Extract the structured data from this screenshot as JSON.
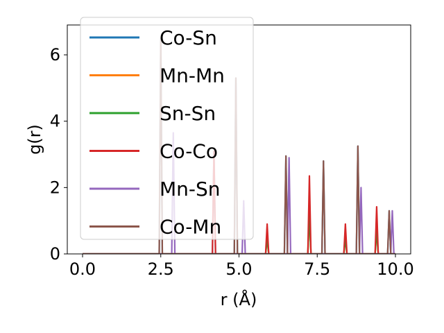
{
  "chart_data": {
    "type": "line",
    "title": "",
    "xlabel": "r (Å)",
    "ylabel": "g(r)",
    "xlim": [
      -0.5,
      10.25
    ],
    "ylim": [
      0,
      6.9
    ],
    "xticks": [
      0.0,
      2.5,
      5.0,
      7.5,
      10.0
    ],
    "xtick_labels": [
      "0.0",
      "2.5",
      "5.0",
      "7.5",
      "10.0"
    ],
    "yticks": [
      0,
      2,
      4,
      6
    ],
    "ytick_labels": [
      "0",
      "2",
      "4",
      "6"
    ],
    "grid": false,
    "legend_position": "top-left",
    "peak_width": 0.05,
    "series": [
      {
        "name": "Co-Sn",
        "color": "#1f77b4",
        "peaks": [
          [
            2.5,
            6.5
          ],
          [
            4.2,
            3.1
          ],
          [
            4.9,
            5.3
          ],
          [
            6.5,
            2.95
          ],
          [
            7.7,
            2.8
          ],
          [
            8.8,
            3.25
          ],
          [
            9.8,
            1.3
          ]
        ]
      },
      {
        "name": "Mn-Mn",
        "color": "#ff7f0e",
        "peaks": [
          [
            5.9,
            0.45
          ],
          [
            7.25,
            1.2
          ],
          [
            8.4,
            0.45
          ],
          [
            9.4,
            0.7
          ]
        ]
      },
      {
        "name": "Sn-Sn",
        "color": "#2ca02c",
        "peaks": [
          [
            5.9,
            0.45
          ],
          [
            7.25,
            1.2
          ],
          [
            8.4,
            0.45
          ],
          [
            9.4,
            0.7
          ]
        ]
      },
      {
        "name": "Co-Co",
        "color": "#d62728",
        "peaks": [
          [
            4.2,
            3.1
          ],
          [
            5.9,
            0.9
          ],
          [
            7.25,
            2.35
          ],
          [
            8.4,
            0.9
          ],
          [
            9.4,
            1.42
          ]
        ]
      },
      {
        "name": "Mn-Sn",
        "color": "#9467bd",
        "peaks": [
          [
            2.9,
            3.65
          ],
          [
            5.15,
            1.6
          ],
          [
            6.6,
            2.9
          ],
          [
            8.9,
            2.0
          ],
          [
            9.9,
            1.3
          ]
        ]
      },
      {
        "name": "Co-Mn",
        "color": "#8c564b",
        "peaks": [
          [
            2.5,
            6.5
          ],
          [
            4.9,
            5.3
          ],
          [
            6.5,
            2.95
          ],
          [
            7.7,
            2.8
          ],
          [
            8.8,
            3.25
          ],
          [
            9.8,
            1.3
          ]
        ]
      }
    ]
  }
}
